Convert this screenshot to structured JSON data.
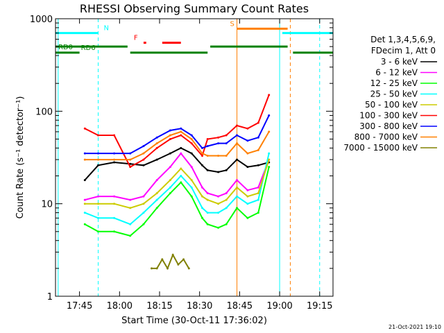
{
  "chart_data": {
    "type": "line",
    "title": "RHESSI Observing Summary Count Rates",
    "xlabel": "Start Time (30-Oct-11 17:36:02)",
    "ylabel": "Count Rate (s⁻¹ detector⁻¹)",
    "y_scale": "log",
    "ylim": [
      1,
      1000
    ],
    "x_unit": "time of day (hh:mm)",
    "xlim": [
      "17:36",
      "19:20"
    ],
    "x_ticks": [
      "17:45",
      "18:00",
      "18:15",
      "18:30",
      "18:45",
      "19:00",
      "19:15"
    ],
    "y_ticks": [
      {
        "value": 1,
        "label": "1"
      },
      {
        "value": 10,
        "label": "10"
      },
      {
        "value": 100,
        "label": "100"
      },
      {
        "value": 1000,
        "label": "1000"
      }
    ],
    "legend_position": "right",
    "legend_header": [
      "Det 1,3,4,5,6,9,",
      "FDecim 1, Att 0"
    ],
    "series": [
      {
        "name": "3 - 6 keV",
        "color": "#000000",
        "x": [
          "17:47",
          "17:52",
          "17:58",
          "18:04",
          "18:09",
          "18:14",
          "18:19",
          "18:23",
          "18:27",
          "18:31",
          "18:33",
          "18:37",
          "18:40",
          "18:44",
          "18:48",
          "18:52",
          "18:56"
        ],
        "y": [
          18,
          26,
          28,
          27,
          26,
          30,
          35,
          40,
          35,
          26,
          23,
          22,
          23,
          30,
          25,
          26,
          28
        ]
      },
      {
        "name": "6 - 12 keV",
        "color": "#ff00ff",
        "x": [
          "17:47",
          "17:52",
          "17:58",
          "18:04",
          "18:09",
          "18:14",
          "18:19",
          "18:23",
          "18:27",
          "18:31",
          "18:33",
          "18:37",
          "18:40",
          "18:44",
          "18:48",
          "18:52",
          "18:56"
        ],
        "y": [
          11,
          12,
          12,
          11,
          12,
          18,
          25,
          35,
          25,
          15,
          13,
          12,
          13,
          18,
          14,
          15,
          30
        ]
      },
      {
        "name": "12 - 25 keV",
        "color": "#00ff00",
        "x": [
          "17:47",
          "17:52",
          "17:58",
          "18:04",
          "18:09",
          "18:14",
          "18:19",
          "18:23",
          "18:27",
          "18:31",
          "18:33",
          "18:37",
          "18:40",
          "18:44",
          "18:48",
          "18:52",
          "18:56"
        ],
        "y": [
          6,
          5,
          5,
          4.5,
          6,
          9,
          13,
          17,
          12,
          7,
          6,
          5.5,
          6,
          9,
          7,
          8,
          25
        ]
      },
      {
        "name": "25 - 50 keV",
        "color": "#00ffff",
        "x": [
          "17:47",
          "17:52",
          "17:58",
          "18:04",
          "18:09",
          "18:14",
          "18:19",
          "18:23",
          "18:27",
          "18:31",
          "18:33",
          "18:37",
          "18:40",
          "18:44",
          "18:48",
          "18:52",
          "18:56"
        ],
        "y": [
          8,
          7,
          7,
          6,
          8,
          11,
          15,
          20,
          15,
          9,
          8,
          8,
          9,
          12,
          10,
          11,
          35
        ]
      },
      {
        "name": "50 - 100 keV",
        "color": "#cccc00",
        "x": [
          "17:47",
          "17:52",
          "17:58",
          "18:04",
          "18:09",
          "18:14",
          "18:19",
          "18:23",
          "18:27",
          "18:31",
          "18:33",
          "18:37",
          "18:40",
          "18:44",
          "18:48",
          "18:52",
          "18:56"
        ],
        "y": [
          10,
          10,
          10,
          9,
          10,
          13,
          18,
          24,
          18,
          12,
          11,
          10,
          11,
          15,
          12,
          13,
          30
        ]
      },
      {
        "name": "100 - 300 keV",
        "color": "#ff0000",
        "x": [
          "17:47",
          "17:52",
          "17:58",
          "18:04",
          "18:09",
          "18:14",
          "18:19",
          "18:23",
          "18:27",
          "18:31",
          "18:33",
          "18:37",
          "18:40",
          "18:44",
          "18:48",
          "18:52",
          "18:56"
        ],
        "y": [
          65,
          55,
          55,
          25,
          30,
          40,
          50,
          55,
          45,
          33,
          50,
          52,
          55,
          70,
          65,
          75,
          150
        ]
      },
      {
        "name": "300 - 800 keV",
        "color": "#0000ff",
        "x": [
          "17:47",
          "17:52",
          "17:58",
          "18:04",
          "18:09",
          "18:14",
          "18:19",
          "18:23",
          "18:27",
          "18:31",
          "18:33",
          "18:37",
          "18:40",
          "18:44",
          "18:48",
          "18:52",
          "18:56"
        ],
        "y": [
          35,
          35,
          35,
          35,
          42,
          52,
          62,
          65,
          55,
          40,
          42,
          45,
          45,
          55,
          48,
          52,
          90
        ]
      },
      {
        "name": "800 - 7000 keV",
        "color": "#ff8000",
        "x": [
          "17:47",
          "17:52",
          "17:58",
          "18:04",
          "18:09",
          "18:14",
          "18:19",
          "18:23",
          "18:27",
          "18:31",
          "18:33",
          "18:37",
          "18:40",
          "18:44",
          "18:48",
          "18:52",
          "18:56"
        ],
        "y": [
          30,
          30,
          30,
          30,
          35,
          45,
          55,
          60,
          50,
          35,
          33,
          33,
          33,
          45,
          35,
          38,
          60
        ]
      },
      {
        "name": "7000 - 15000 keV",
        "color": "#808000",
        "x": [
          "18:12",
          "18:14",
          "18:16",
          "18:18",
          "18:20",
          "18:22",
          "18:24",
          "18:26"
        ],
        "y": [
          2,
          2,
          2.5,
          2,
          2.8,
          2.2,
          2.5,
          2
        ]
      }
    ],
    "flags": [
      {
        "label": "N",
        "color": "#00ffff",
        "level": 700,
        "segments": [
          [
            "17:36",
            "17:52"
          ],
          [
            "19:01",
            "19:20"
          ]
        ]
      },
      {
        "label": "F",
        "color": "#ff0000",
        "level": 550,
        "segments": [
          [
            "18:09",
            "18:10"
          ],
          [
            "18:16",
            "18:23"
          ]
        ]
      },
      {
        "label": "S",
        "color": "#ff8000",
        "level": 780,
        "segments": [
          [
            "18:44",
            "19:03"
          ]
        ]
      },
      {
        "label": "RD0",
        "color": "#008000",
        "level": 500,
        "segments": [
          [
            "17:36",
            "18:03"
          ],
          [
            "18:34",
            "19:03"
          ]
        ]
      },
      {
        "label": "RD6",
        "color": "#008000",
        "level": 430,
        "segments": [
          [
            "17:36",
            "17:45"
          ],
          [
            "18:04",
            "18:33"
          ],
          [
            "19:05",
            "19:20"
          ]
        ]
      }
    ],
    "vertical_markers": [
      {
        "x": "17:37",
        "color": "#00ffff",
        "style": "solid"
      },
      {
        "x": "17:52",
        "color": "#00ffff",
        "style": "dashed"
      },
      {
        "x": "19:00",
        "color": "#00ffff",
        "style": "solid"
      },
      {
        "x": "19:15",
        "color": "#00ffff",
        "style": "dashed"
      },
      {
        "x": "18:44",
        "color": "#ff8000",
        "style": "solid"
      },
      {
        "x": "19:04",
        "color": "#ff8000",
        "style": "dashed"
      }
    ],
    "footer_date": "21-Oct-2021 19:10"
  }
}
